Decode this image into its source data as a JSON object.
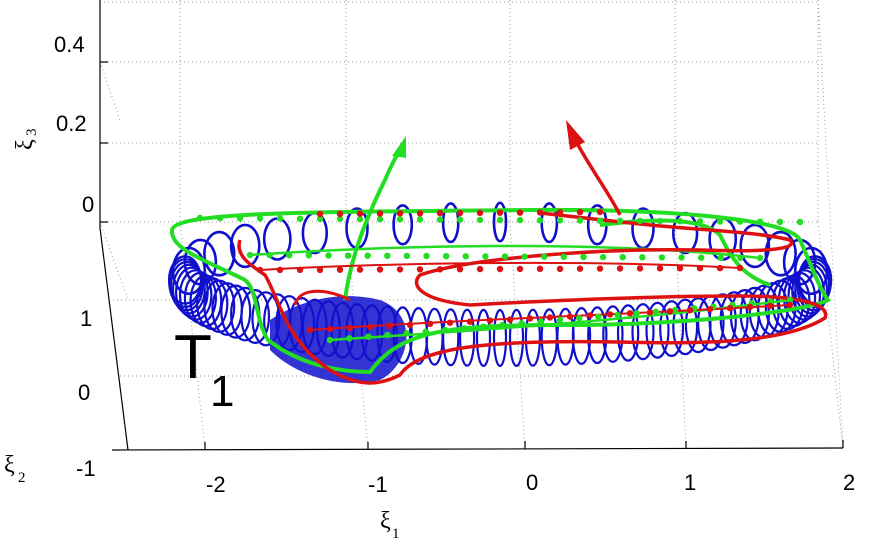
{
  "chart_data": {
    "type": "line",
    "view": "3d",
    "title": "",
    "xlabel": "ξ",
    "xlabel_sub": "1",
    "ylabel": "ξ",
    "ylabel_sub": "2",
    "zlabel": "ξ",
    "zlabel_sub": "3",
    "xticks": [
      "-2",
      "-1",
      "0",
      "1",
      "2"
    ],
    "yticks": [
      "-1",
      "0",
      "1"
    ],
    "zticks": [
      "0",
      "0.2",
      "0.4"
    ],
    "xlim": [
      -2,
      2
    ],
    "ylim": [
      -1,
      1
    ],
    "zlim": [
      0,
      0.5
    ],
    "grid": true,
    "annotation": {
      "text": "T",
      "subscript": "1"
    },
    "series": [
      {
        "name": "",
        "color": "#1010cc",
        "style": "tube of circles"
      },
      {
        "name": "",
        "color": "#22dd22",
        "style": "line with markers and arrow"
      },
      {
        "name": "",
        "color": "#dd1111",
        "style": "line with markers and arrow"
      }
    ]
  }
}
